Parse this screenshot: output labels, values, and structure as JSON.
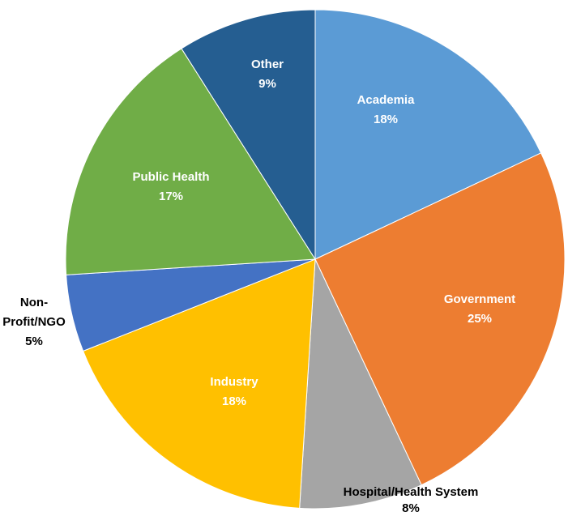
{
  "chart_data": {
    "type": "pie",
    "categories": [
      "Academia",
      "Government",
      "Hospital/Health System",
      "Industry",
      "Non-Profit/NGO",
      "Public Health",
      "Other"
    ],
    "values": [
      18,
      25,
      8,
      18,
      5,
      17,
      9
    ],
    "value_labels": [
      "18%",
      "25%",
      "8%",
      "18%",
      "5%",
      "17%",
      "9%"
    ],
    "colors": [
      "#5b9bd5",
      "#ed7d31",
      "#a5a5a5",
      "#ffc000",
      "#4472c4",
      "#70ad47",
      "#255e91"
    ]
  }
}
